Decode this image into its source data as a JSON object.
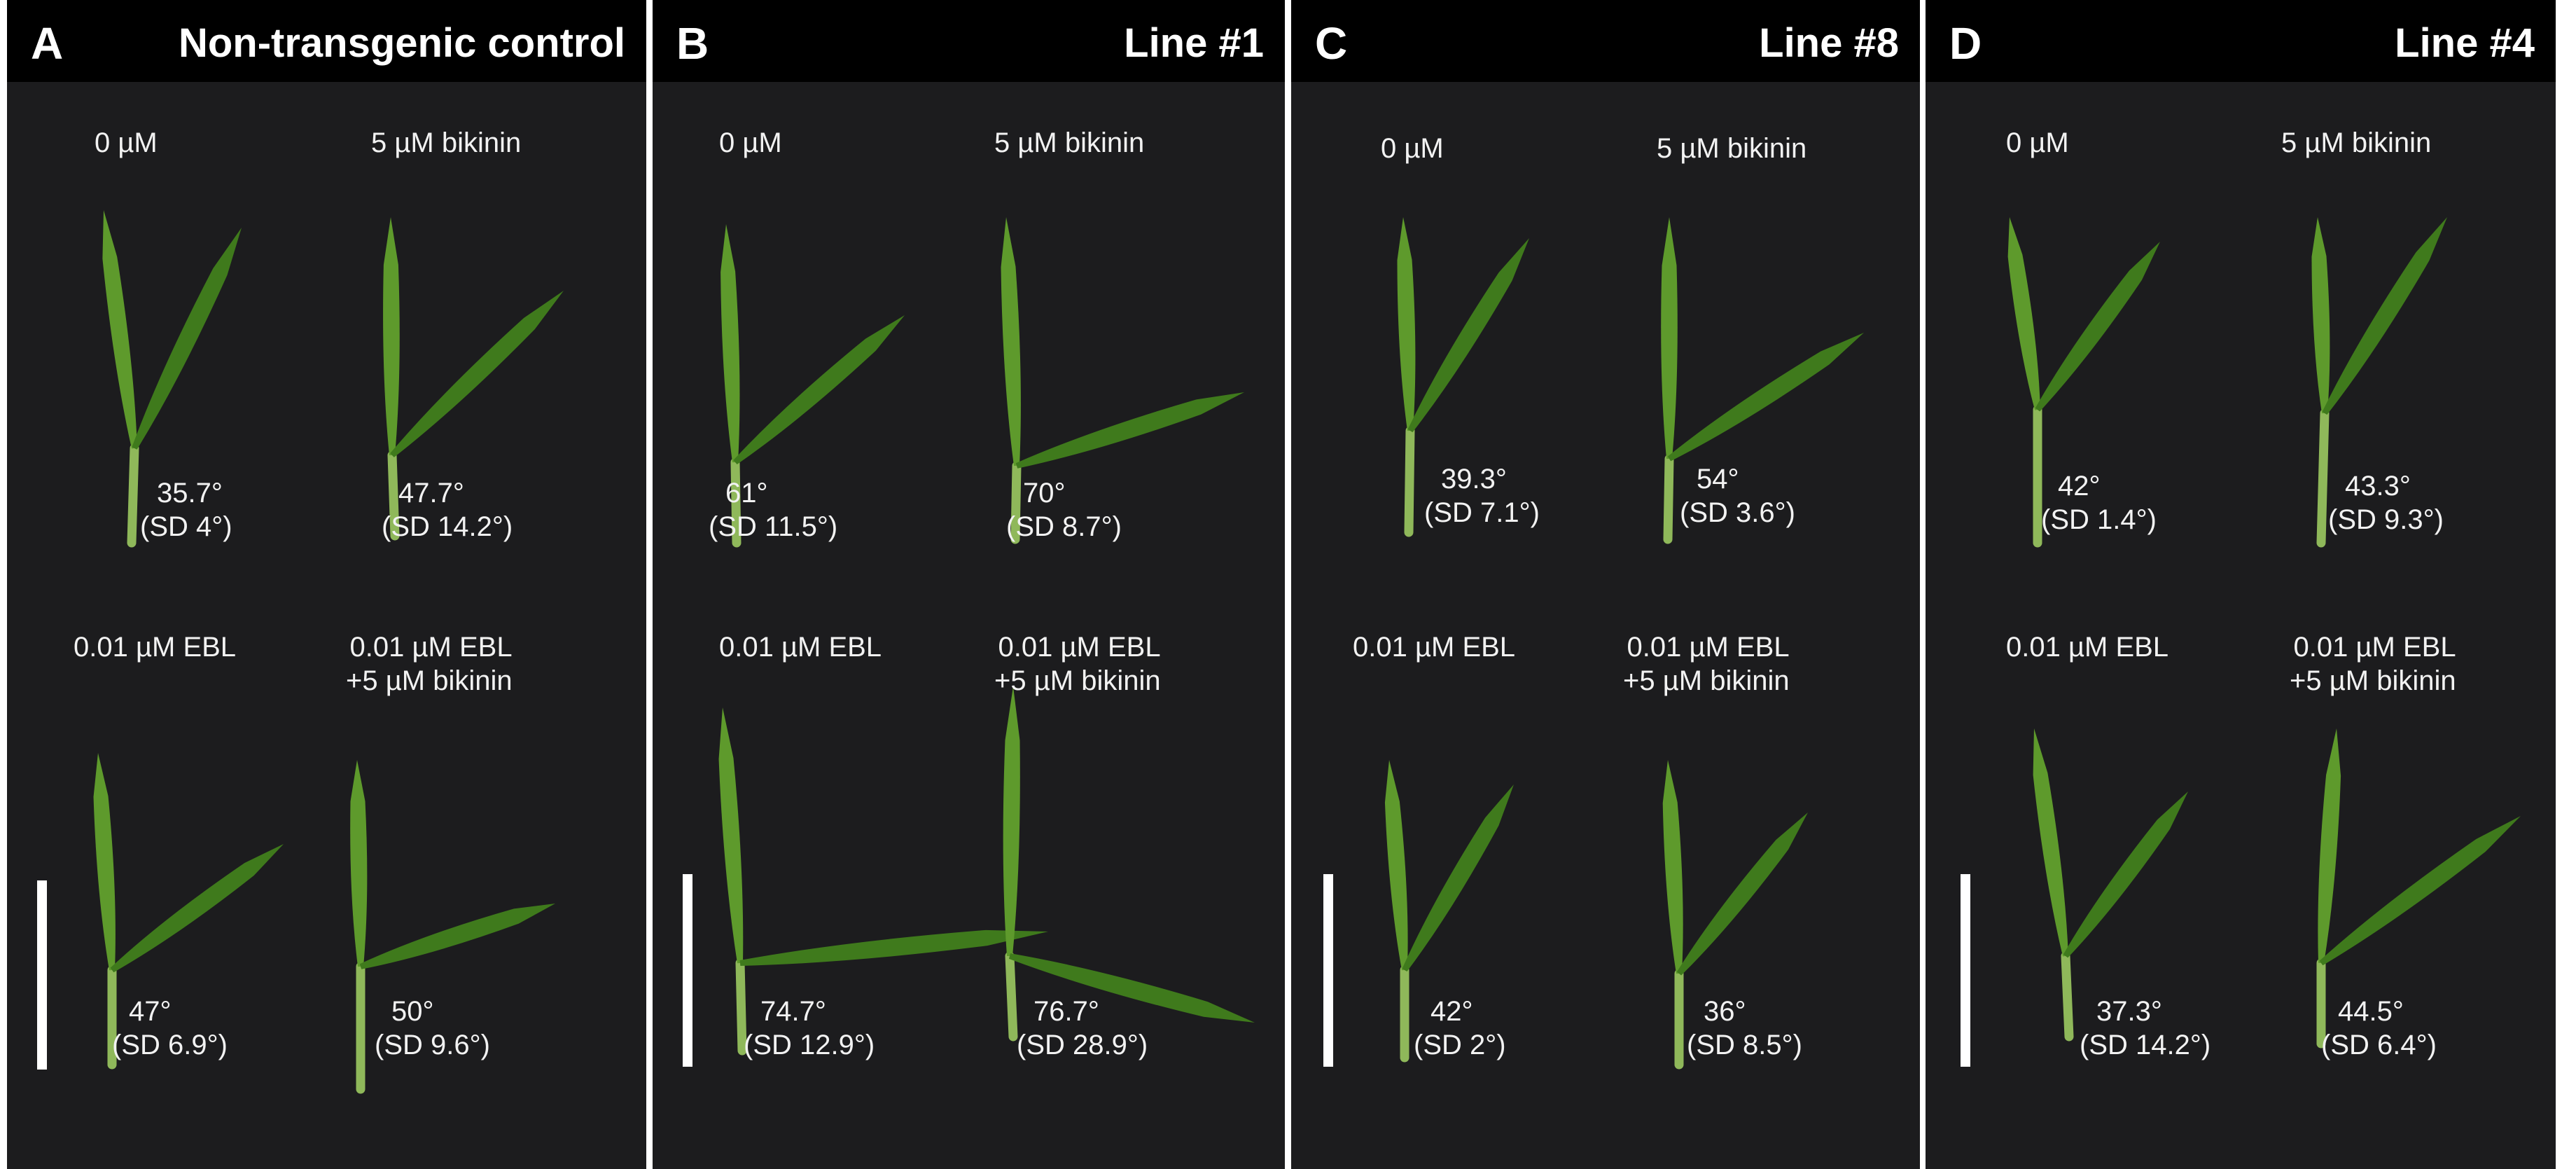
{
  "panels": [
    {
      "letter": "A",
      "title": "Non-transgenic control",
      "conditions": [
        "0 µM",
        "5 µM bikinin",
        "0.01 µM EBL",
        "0.01 µM EBL\n+5 µM bikinin"
      ],
      "measurements": [
        {
          "angle": "35.7°",
          "sd": "(SD 4°)"
        },
        {
          "angle": "47.7°",
          "sd": "(SD 14.2°)"
        },
        {
          "angle": "47°",
          "sd": "(SD 6.9°)"
        },
        {
          "angle": "50°",
          "sd": "(SD 9.6°)"
        }
      ]
    },
    {
      "letter": "B",
      "title": "Line #1",
      "conditions": [
        "0 µM",
        "5 µM bikinin",
        "0.01 µM EBL",
        "0.01 µM EBL\n+5 µM bikinin"
      ],
      "measurements": [
        {
          "angle": "61°",
          "sd": "(SD 11.5°)"
        },
        {
          "angle": "70°",
          "sd": "(SD 8.7°)"
        },
        {
          "angle": "74.7°",
          "sd": "(SD 12.9°)"
        },
        {
          "angle": "76.7°",
          "sd": "(SD 28.9°)"
        }
      ]
    },
    {
      "letter": "C",
      "title": "Line #8",
      "conditions": [
        "0 µM",
        "5 µM bikinin",
        "0.01 µM EBL",
        "0.01 µM EBL\n+5 µM bikinin"
      ],
      "measurements": [
        {
          "angle": "39.3°",
          "sd": "(SD 7.1°)"
        },
        {
          "angle": "54°",
          "sd": "(SD 3.6°)"
        },
        {
          "angle": "42°",
          "sd": "(SD 2°)"
        },
        {
          "angle": "36°",
          "sd": "(SD 8.5°)"
        }
      ]
    },
    {
      "letter": "D",
      "title": "Line #4",
      "conditions": [
        "0 µM",
        "5 µM bikinin",
        "0.01 µM EBL",
        "0.01 µM EBL\n+5 µM bikinin"
      ],
      "measurements": [
        {
          "angle": "42°",
          "sd": "(SD 1.4°)"
        },
        {
          "angle": "43.3°",
          "sd": "(SD 9.3°)"
        },
        {
          "angle": "37.3°",
          "sd": "(SD 14.2°)"
        },
        {
          "angle": "44.5°",
          "sd": "(SD 6.4°)"
        }
      ]
    }
  ],
  "colors": {
    "background": "#1c1c1e",
    "header": "#000000",
    "leaf": "#5e9a2c",
    "leaf_dark": "#3f7a1c",
    "stem": "#8fb85a",
    "text": "#f2f2f2"
  }
}
